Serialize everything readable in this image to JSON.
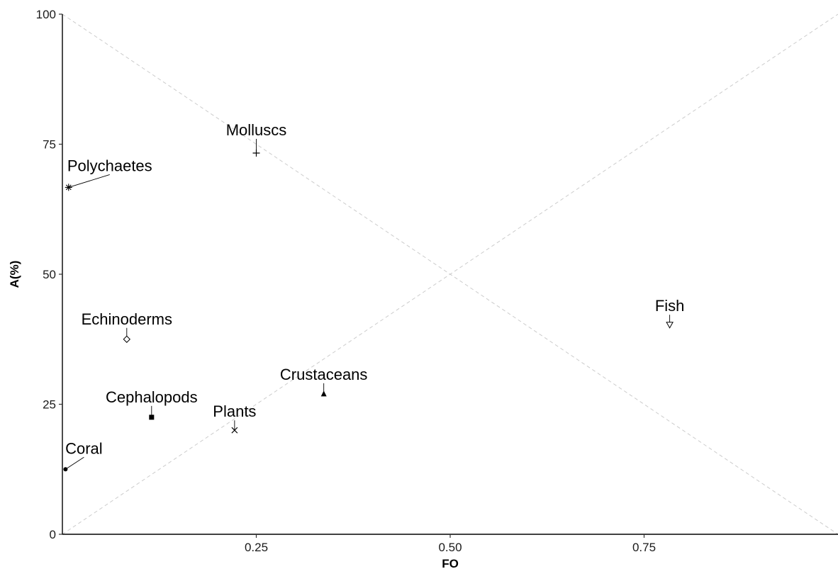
{
  "chart_data": {
    "type": "scatter",
    "title": "",
    "xlabel": "FO",
    "ylabel": "A(%)",
    "xlim": [
      0,
      1
    ],
    "ylim": [
      0,
      100
    ],
    "xticks": [
      "0.25",
      "0.50",
      "0.75"
    ],
    "yticks": [
      "0",
      "25",
      "50",
      "75",
      "100"
    ],
    "grid": false,
    "reference_lines": [
      {
        "from": [
          0,
          100
        ],
        "to": [
          1,
          0
        ],
        "style": "dashed"
      },
      {
        "from": [
          0,
          0
        ],
        "to": [
          1,
          100
        ],
        "style": "dashed"
      }
    ],
    "points": [
      {
        "label": "Molluscs",
        "x": 0.25,
        "y": 73.3,
        "marker": "plus"
      },
      {
        "label": "Polychaetes",
        "x": 0.008,
        "y": 66.7,
        "marker": "asterisk"
      },
      {
        "label": "Fish",
        "x": 0.783,
        "y": 40.3,
        "marker": "triangle-down-open"
      },
      {
        "label": "Echinoderms",
        "x": 0.083,
        "y": 37.5,
        "marker": "diamond-open"
      },
      {
        "label": "Crustaceans",
        "x": 0.337,
        "y": 27.0,
        "marker": "triangle-filled"
      },
      {
        "label": "Cephalopods",
        "x": 0.115,
        "y": 22.5,
        "marker": "square-filled"
      },
      {
        "label": "Plants",
        "x": 0.222,
        "y": 20.0,
        "marker": "x"
      },
      {
        "label": "Coral",
        "x": 0.004,
        "y": 12.5,
        "marker": "circle-filled"
      }
    ]
  }
}
